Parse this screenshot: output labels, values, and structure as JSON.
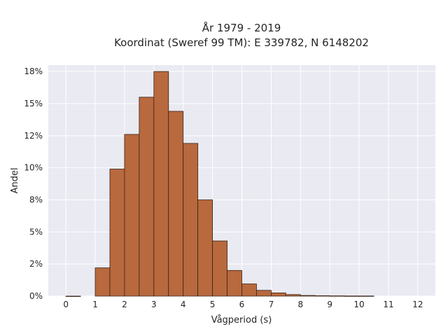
{
  "chart_data": {
    "type": "bar",
    "title_lines": [
      "År 1979 - 2019",
      "Koordinat (Sweref 99 TM): E 339782, N 6148202"
    ],
    "xlabel": "Vågperiod (s)",
    "ylabel": "Andel",
    "bin_width": 0.5,
    "bins": [
      {
        "x0": 0.0,
        "value": 0.0
      },
      {
        "x0": 1.0,
        "value": 0.022
      },
      {
        "x0": 1.5,
        "value": 0.099
      },
      {
        "x0": 2.0,
        "value": 0.126
      },
      {
        "x0": 2.5,
        "value": 0.155
      },
      {
        "x0": 3.0,
        "value": 0.175
      },
      {
        "x0": 3.5,
        "value": 0.144
      },
      {
        "x0": 4.0,
        "value": 0.119
      },
      {
        "x0": 4.5,
        "value": 0.075
      },
      {
        "x0": 5.0,
        "value": 0.043
      },
      {
        "x0": 5.5,
        "value": 0.02
      },
      {
        "x0": 6.0,
        "value": 0.0095
      },
      {
        "x0": 6.5,
        "value": 0.0045
      },
      {
        "x0": 7.0,
        "value": 0.0025
      },
      {
        "x0": 7.5,
        "value": 0.0012
      },
      {
        "x0": 8.0,
        "value": 0.0005
      },
      {
        "x0": 8.5,
        "value": 0.0003
      },
      {
        "x0": 9.0,
        "value": 0.0002
      },
      {
        "x0": 9.5,
        "value": 0.0001
      },
      {
        "x0": 10.0,
        "value": 0.0001
      }
    ],
    "xlim": [
      -0.6,
      12.6
    ],
    "ylim": [
      0,
      0.18
    ],
    "xticks": [
      0,
      1,
      2,
      3,
      4,
      5,
      6,
      7,
      8,
      9,
      10,
      11,
      12
    ],
    "xtick_labels": [
      "0",
      "1",
      "2",
      "3",
      "4",
      "5",
      "6",
      "7",
      "8",
      "9",
      "10",
      "11",
      "12"
    ],
    "yticks": [
      0,
      0.025,
      0.05,
      0.075,
      0.1,
      0.125,
      0.15,
      0.175
    ],
    "ytick_labels": [
      "0%",
      "2%",
      "5%",
      "8%",
      "10%",
      "12%",
      "15%",
      "18%"
    ],
    "grid": true,
    "colors": {
      "bar_fill": "#b8693d",
      "bar_edge": "#3a2418",
      "plot_bg": "#eaeaf2",
      "grid": "#ffffff",
      "text": "#262626"
    }
  }
}
